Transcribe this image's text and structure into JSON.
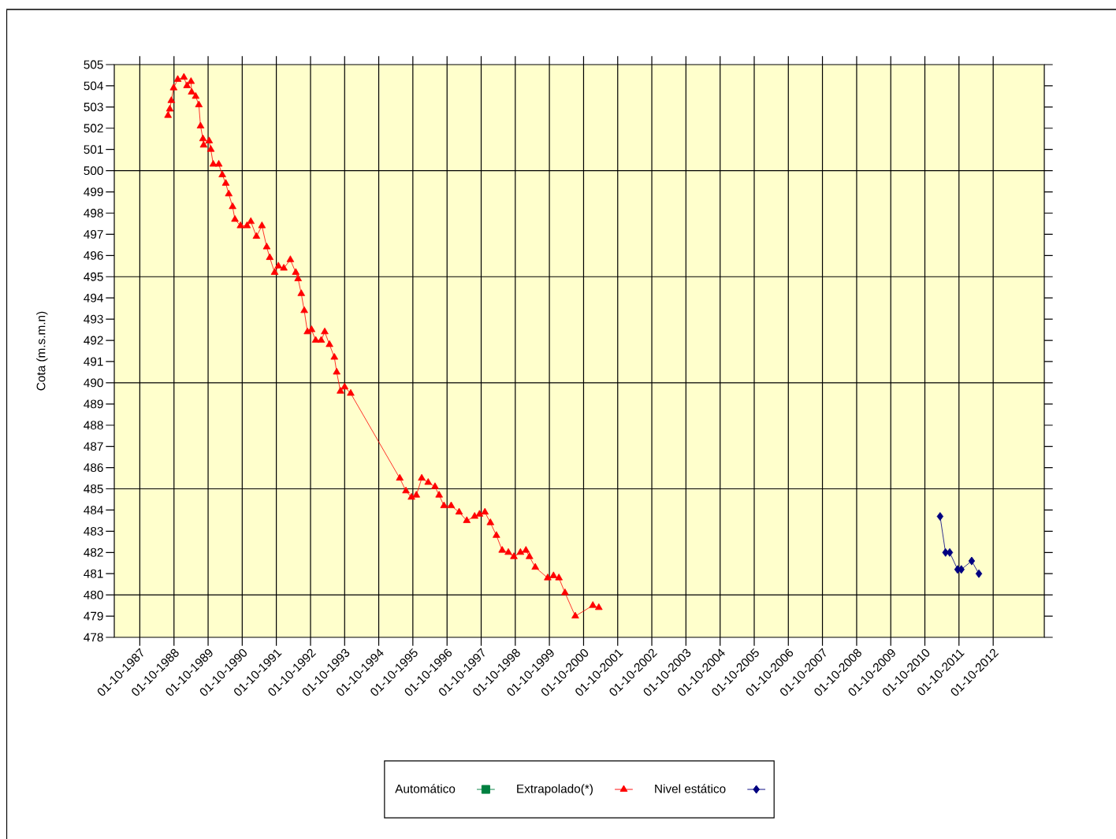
{
  "chart_data": {
    "type": "line",
    "ylabel": "Cota (m.s.m.n)",
    "xlim": [
      "1987-01-01",
      "2014-04-01"
    ],
    "ylim": [
      478,
      505
    ],
    "xticks": [
      {
        "value": "1987-10-01",
        "label": "01-10-1987"
      },
      {
        "value": "1988-10-01",
        "label": "01-10-1988"
      },
      {
        "value": "1989-10-01",
        "label": "01-10-1989"
      },
      {
        "value": "1990-10-01",
        "label": "01-10-1990"
      },
      {
        "value": "1991-10-01",
        "label": "01-10-1991"
      },
      {
        "value": "1992-10-01",
        "label": "01-10-1992"
      },
      {
        "value": "1993-10-01",
        "label": "01-10-1993"
      },
      {
        "value": "1994-10-01",
        "label": "01-10-1994"
      },
      {
        "value": "1995-10-01",
        "label": "01-10-1995"
      },
      {
        "value": "1996-10-01",
        "label": "01-10-1996"
      },
      {
        "value": "1997-10-01",
        "label": "01-10-1997"
      },
      {
        "value": "1998-10-01",
        "label": "01-10-1998"
      },
      {
        "value": "1999-10-01",
        "label": "01-10-1999"
      },
      {
        "value": "2000-10-01",
        "label": "01-10-2000"
      },
      {
        "value": "2001-10-01",
        "label": "01-10-2001"
      },
      {
        "value": "2002-10-01",
        "label": "01-10-2002"
      },
      {
        "value": "2003-10-01",
        "label": "01-10-2003"
      },
      {
        "value": "2004-10-01",
        "label": "01-10-2004"
      },
      {
        "value": "2005-10-01",
        "label": "01-10-2005"
      },
      {
        "value": "2006-10-01",
        "label": "01-10-2006"
      },
      {
        "value": "2007-10-01",
        "label": "01-10-2007"
      },
      {
        "value": "2008-10-01",
        "label": "01-10-2008"
      },
      {
        "value": "2009-10-01",
        "label": "01-10-2009"
      },
      {
        "value": "2010-10-01",
        "label": "01-10-2010"
      },
      {
        "value": "2011-10-01",
        "label": "01-10-2011"
      },
      {
        "value": "2012-10-01",
        "label": "01-10-2012"
      }
    ],
    "yticks": [
      478,
      479,
      480,
      481,
      482,
      483,
      484,
      485,
      486,
      487,
      488,
      489,
      490,
      491,
      492,
      493,
      494,
      495,
      496,
      497,
      498,
      499,
      500,
      501,
      502,
      503,
      504,
      505
    ],
    "grid": "x",
    "legend": "bottom",
    "line_style": "solid",
    "ref_lines": [
      {
        "axis": "y",
        "value": 480,
        "color": "#000000"
      },
      {
        "axis": "y",
        "value": 485,
        "color": "#000000"
      },
      {
        "axis": "y",
        "value": 490,
        "color": "#000000"
      },
      {
        "axis": "y",
        "value": 495,
        "color": "#000000"
      },
      {
        "axis": "y",
        "value": 500,
        "color": "#000000"
      }
    ],
    "series": [
      {
        "name": "Automático",
        "color": "#008040",
        "marker": "square"
      },
      {
        "name": "Extrapolado(*)",
        "color": "#ff0000",
        "marker": "triangle",
        "x": [
          "1988-07-29",
          "1988-08-17",
          "1988-09-02",
          "1988-09-27",
          "1988-11-10",
          "1989-01-15",
          "1989-02-17",
          "1989-04-01",
          "1989-04-08",
          "1989-05-21",
          "1989-06-24",
          "1989-07-12",
          "1989-08-07",
          "1989-08-14",
          "1989-10-12",
          "1989-10-30",
          "1989-11-25",
          "1990-01-23",
          "1990-03-02",
          "1990-04-08",
          "1990-05-10",
          "1990-06-20",
          "1990-07-15",
          "1990-09-13",
          "1990-11-21",
          "1991-01-01",
          "1991-03-02",
          "1991-04-30",
          "1991-06-20",
          "1991-07-23",
          "1991-09-13",
          "1991-10-23",
          "1991-12-20",
          "1992-02-28",
          "1992-04-26",
          "1992-05-21",
          "1992-06-24",
          "1992-07-26",
          "1992-08-29",
          "1992-10-12",
          "1992-11-25",
          "1993-01-23",
          "1993-03-02",
          "1993-04-22",
          "1993-06-13",
          "1993-07-08",
          "1993-08-17",
          "1993-10-01",
          "1993-12-05",
          "1995-05-14",
          "1995-07-19",
          "1995-09-16",
          "1995-11-07",
          "1996-01-04",
          "1996-03-13",
          "1996-05-25",
          "1996-07-08",
          "1996-08-29",
          "1996-11-14",
          "1997-02-07",
          "1997-04-30",
          "1997-07-23",
          "1997-09-13",
          "1997-11-10",
          "1998-01-08",
          "1998-03-13",
          "1998-05-14",
          "1998-07-19",
          "1998-09-16",
          "1998-11-25",
          "1999-01-23",
          "1999-03-02",
          "1999-05-03",
          "1999-09-13",
          "1999-11-14",
          "2000-01-11",
          "2000-03-16",
          "2000-07-04",
          "2001-01-08",
          "2001-03-13"
        ],
        "values": [
          502.6,
          502.9,
          503.3,
          503.9,
          504.3,
          504.4,
          504.0,
          504.2,
          503.7,
          503.5,
          503.1,
          502.1,
          501.5,
          501.2,
          501.4,
          501.0,
          500.3,
          500.3,
          499.8,
          499.4,
          498.9,
          498.3,
          497.7,
          497.4,
          497.4,
          497.6,
          496.9,
          497.4,
          496.4,
          495.9,
          495.2,
          495.5,
          495.4,
          495.8,
          495.2,
          494.9,
          494.2,
          493.4,
          492.4,
          492.5,
          492.0,
          492.0,
          492.4,
          491.8,
          491.2,
          490.5,
          489.6,
          489.8,
          489.5,
          485.5,
          484.9,
          484.6,
          484.7,
          485.5,
          485.3,
          485.1,
          484.7,
          484.2,
          484.2,
          483.9,
          483.5,
          483.7,
          483.8,
          483.9,
          483.4,
          482.8,
          482.1,
          482.0,
          481.8,
          482.0,
          482.1,
          481.8,
          481.3,
          480.8,
          480.9,
          480.8,
          480.1,
          479.0,
          479.5,
          479.4
        ]
      },
      {
        "name": "Nivel estático",
        "color": "#000080",
        "marker": "diamond",
        "x": [
          "2011-03-13",
          "2011-05-10",
          "2011-06-24",
          "2011-09-16",
          "2011-10-26",
          "2012-02-14",
          "2012-05-01"
        ],
        "values": [
          483.7,
          482.0,
          482.0,
          481.2,
          481.2,
          481.6,
          481.0
        ]
      }
    ]
  }
}
